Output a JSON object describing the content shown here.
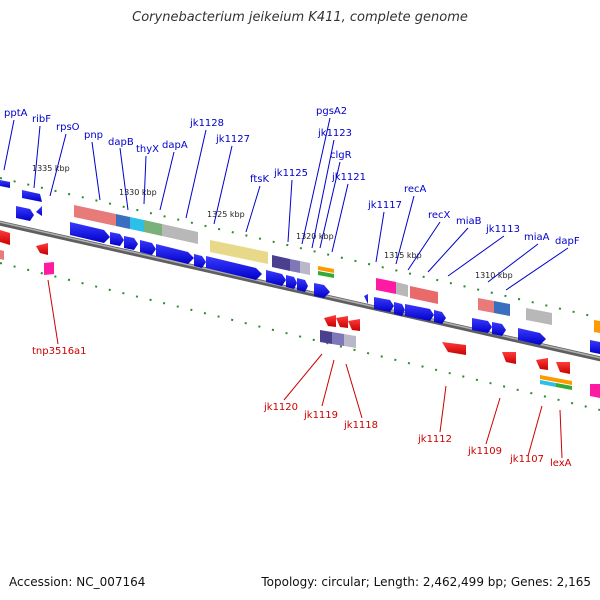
{
  "title": "Corynebacterium jeikeium K411, complete genome",
  "footer": {
    "accession": "Accession: NC_007164",
    "summary": "Topology: circular; Length: 2,462,499 bp; Genes: 2,165"
  },
  "colors": {
    "backbone": "#8a8a8a",
    "tick": "#2e8b2e",
    "forward_label": "#0000cc",
    "reverse_label": "#cc0000",
    "cds_forward": "#0000ee",
    "cds_reverse": "#ee0000"
  },
  "kbp_markers": [
    "1335 kbp",
    "1330 kbp",
    "1325 kbp",
    "1320 kbp",
    "1315 kbp",
    "1310 kbp"
  ],
  "forward_gene_labels": [
    "pptA",
    "ribF",
    "rpsO",
    "pnp",
    "dapB",
    "thyX",
    "dapA",
    "jk1128",
    "jk1127",
    "ftsK",
    "jk1125",
    "pgsA2",
    "jk1123",
    "clgR",
    "jk1121",
    "jk1117",
    "recA",
    "recX",
    "miaB",
    "jk1113",
    "miaA",
    "dapF"
  ],
  "reverse_gene_labels": [
    "tnp3516a1",
    "jk1120",
    "jk1119",
    "jk1118",
    "jk1112",
    "jk1109",
    "jk1107",
    "lexA"
  ]
}
